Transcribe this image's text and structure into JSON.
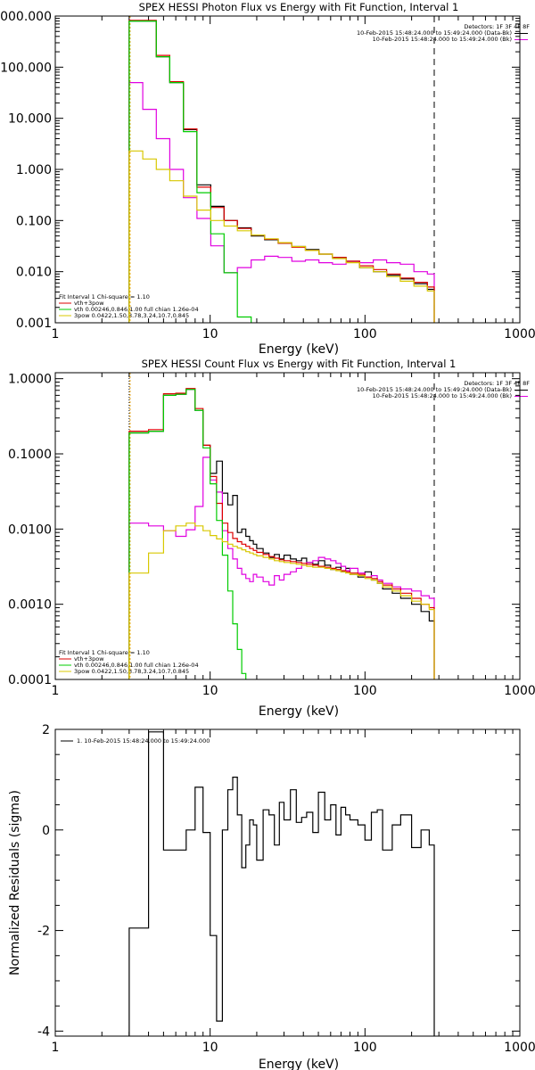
{
  "chart_data": [
    {
      "type": "line",
      "title": "SPEX HESSI Photon Flux vs Energy with Fit Function, Interval 1",
      "xlabel": "Energy (keV)",
      "ylabel": "",
      "xscale": "log",
      "yscale": "log",
      "xlim": [
        1,
        1000
      ],
      "ylim": [
        0.001,
        1000
      ],
      "xticks": [
        "1",
        "10",
        "100",
        "1000"
      ],
      "yticks": [
        "1000.000",
        "100.000",
        "10.000",
        "1.000",
        "0.100",
        "0.010",
        "0.001"
      ],
      "vlines": [
        3,
        280
      ],
      "legend_right": {
        "header": "Detectors: 1F 3F 4F 8F",
        "items": [
          {
            "text": "10-Feb-2015 15:48:24.000 to 15:49:24.000 (Data-Bk)",
            "color": "#000000"
          },
          {
            "text": "10-Feb-2015 15:48:24.000 to 15:49:24.000 (Bk)",
            "color": "#e000e0"
          }
        ]
      },
      "legend_left": {
        "header": "Fit Interval 1   Chi-square = 1.10",
        "items": [
          {
            "text": "vth+3pow",
            "color": "#dd0000"
          },
          {
            "text": "vth 0.00246,0.846,1.00  full chian 1.26e-04",
            "color": "#00cc00"
          },
          {
            "text": "3pow 0.0422,1.50,3.78,3.24,10.7,0.845",
            "color": "#d8c800"
          }
        ]
      },
      "edges": [
        3.0,
        3.67,
        4.49,
        5.49,
        6.72,
        8.22,
        10.1,
        12.3,
        15.0,
        18.4,
        22.5,
        27.5,
        33.7,
        41.2,
        50.4,
        61.7,
        75.5,
        92.3,
        113,
        138,
        169,
        207,
        253,
        280
      ],
      "series": [
        {
          "name": "Data-Bk",
          "color": "#000000",
          "values": [
            800,
            800,
            160,
            50,
            6.0,
            0.5,
            0.19,
            0.1,
            0.072,
            0.05,
            0.042,
            0.036,
            0.031,
            0.027,
            0.022,
            0.019,
            0.016,
            0.012,
            0.01,
            0.0085,
            0.0072,
            0.0058,
            0.0045
          ]
        },
        {
          "name": "Bk",
          "color": "#e000e0",
          "values": [
            50,
            15,
            4.0,
            1.0,
            0.28,
            0.11,
            0.032,
            0.0095,
            0.012,
            0.017,
            0.02,
            0.019,
            0.016,
            0.017,
            0.015,
            0.014,
            0.016,
            0.015,
            0.017,
            0.015,
            0.014,
            0.01,
            0.009
          ]
        },
        {
          "name": "vth+3pow",
          "color": "#dd0000",
          "values": [
            820,
            820,
            170,
            52,
            6.2,
            0.45,
            0.18,
            0.1,
            0.07,
            0.052,
            0.043,
            0.036,
            0.03,
            0.026,
            0.022,
            0.019,
            0.016,
            0.013,
            0.011,
            0.009,
            0.0075,
            0.0062,
            0.005
          ]
        },
        {
          "name": "vth",
          "color": "#00cc00",
          "values": [
            800,
            800,
            160,
            50,
            5.5,
            0.35,
            0.055,
            0.0095,
            0.0013
          ]
        },
        {
          "name": "3pow",
          "color": "#d8c800",
          "values": [
            2.3,
            1.6,
            1.0,
            0.6,
            0.3,
            0.16,
            0.1,
            0.078,
            0.063,
            0.052,
            0.044,
            0.037,
            0.031,
            0.026,
            0.022,
            0.018,
            0.015,
            0.012,
            0.01,
            0.008,
            0.0065,
            0.0052,
            0.0042
          ]
        }
      ]
    },
    {
      "type": "line",
      "title": "SPEX HESSI Count Flux vs Energy with Fit Function, Interval 1",
      "xlabel": "Energy (keV)",
      "ylabel": "",
      "xscale": "log",
      "yscale": "log",
      "xlim": [
        1,
        1000
      ],
      "ylim": [
        0.0001,
        1.2
      ],
      "xticks": [
        "1",
        "10",
        "100",
        "1000"
      ],
      "yticks": [
        "1.0000",
        "0.1000",
        "0.0100",
        "0.0010",
        "0.0001"
      ],
      "vlines": [
        3,
        280
      ],
      "legend_right": {
        "header": "Detectors: 1F 3F 4F 8F",
        "items": [
          {
            "text": "10-Feb-2015 15:48:24.000 to 15:49:24.000 (Data-Bk)",
            "color": "#000000"
          },
          {
            "text": "10-Feb-2015 15:48:24.000 to 15:49:24.000 (Bk)",
            "color": "#e000e0"
          }
        ]
      },
      "legend_left": {
        "header": "Fit Interval 1   Chi-square = 1.10",
        "items": [
          {
            "text": "vth+3pow",
            "color": "#dd0000"
          },
          {
            "text": "vth 0.00246,0.846,1.00  full chian 1.26e-04",
            "color": "#00cc00"
          },
          {
            "text": "3pow 0.0422,1.50,3.78,3.24,10.7,0.845",
            "color": "#d8c800"
          }
        ]
      },
      "edges": [
        3.0,
        4.0,
        5.0,
        6.0,
        7.0,
        8.0,
        9.0,
        10.0,
        11.0,
        12.0,
        13.0,
        14.0,
        15.0,
        16.0,
        17.0,
        18.0,
        19.0,
        20.0,
        22.0,
        24.0,
        26.0,
        28.0,
        30.0,
        33.0,
        36.0,
        39.0,
        42.0,
        46.0,
        50.0,
        55.0,
        60.0,
        65.0,
        70.0,
        75.0,
        80.0,
        90.0,
        100.0,
        110.0,
        120.0,
        130.0,
        150.0,
        170.0,
        200.0,
        230.0,
        260.0,
        280.0
      ],
      "series": [
        {
          "name": "Data-Bk",
          "color": "#000000",
          "values": [
            0.19,
            0.2,
            0.6,
            0.62,
            0.72,
            0.38,
            0.13,
            0.055,
            0.08,
            0.03,
            0.021,
            0.028,
            0.009,
            0.01,
            0.008,
            0.007,
            0.0063,
            0.0055,
            0.0048,
            0.0042,
            0.0046,
            0.004,
            0.0045,
            0.004,
            0.0038,
            0.0041,
            0.0036,
            0.0034,
            0.0038,
            0.0033,
            0.0029,
            0.0031,
            0.0027,
            0.003,
            0.0025,
            0.0023,
            0.0027,
            0.0021,
            0.0019,
            0.0016,
            0.0014,
            0.0012,
            0.001,
            0.0008,
            0.0006
          ]
        },
        {
          "name": "Bk",
          "color": "#e000e0",
          "values": [
            0.012,
            0.011,
            0.0095,
            0.008,
            0.0098,
            0.02,
            0.09,
            0.045,
            0.031,
            0.0095,
            0.0055,
            0.004,
            0.003,
            0.0025,
            0.0022,
            0.002,
            0.0025,
            0.0023,
            0.002,
            0.0018,
            0.0024,
            0.0021,
            0.0025,
            0.0027,
            0.003,
            0.0033,
            0.0036,
            0.0038,
            0.0042,
            0.004,
            0.0038,
            0.0035,
            0.0032,
            0.0028,
            0.003,
            0.0026,
            0.0023,
            0.0024,
            0.0021,
            0.0019,
            0.0017,
            0.0016,
            0.0015,
            0.0013,
            0.0012
          ]
        },
        {
          "name": "vth+3pow",
          "color": "#dd0000",
          "values": [
            0.2,
            0.21,
            0.63,
            0.64,
            0.74,
            0.4,
            0.13,
            0.05,
            0.022,
            0.012,
            0.009,
            0.0075,
            0.0068,
            0.0063,
            0.0059,
            0.0055,
            0.0052,
            0.0049,
            0.0046,
            0.0043,
            0.0041,
            0.0039,
            0.0038,
            0.0037,
            0.0036,
            0.0035,
            0.0034,
            0.0033,
            0.0032,
            0.0031,
            0.003,
            0.0029,
            0.0028,
            0.0027,
            0.0026,
            0.0025,
            0.0023,
            0.0022,
            0.002,
            0.0018,
            0.0016,
            0.0014,
            0.0012,
            0.001,
            0.0009
          ]
        },
        {
          "name": "vth",
          "color": "#00cc00",
          "values": [
            0.19,
            0.2,
            0.6,
            0.62,
            0.72,
            0.38,
            0.12,
            0.04,
            0.013,
            0.0045,
            0.0015,
            0.00055,
            0.00025,
            0.00012
          ]
        },
        {
          "name": "3pow",
          "color": "#d8c800",
          "values": [
            0.0026,
            0.0048,
            0.0095,
            0.011,
            0.012,
            0.011,
            0.0095,
            0.0082,
            0.0074,
            0.0068,
            0.0063,
            0.0059,
            0.0056,
            0.0053,
            0.005,
            0.0048,
            0.0046,
            0.0044,
            0.0042,
            0.004,
            0.0038,
            0.0037,
            0.0036,
            0.0035,
            0.0034,
            0.0033,
            0.0032,
            0.0031,
            0.0031,
            0.003,
            0.0029,
            0.0028,
            0.0027,
            0.0026,
            0.0025,
            0.0024,
            0.0022,
            0.0021,
            0.0019,
            0.0017,
            0.0015,
            0.0013,
            0.0011,
            0.001,
            0.00085
          ]
        }
      ]
    },
    {
      "type": "line",
      "title": "",
      "xlabel": "Energy (keV)",
      "ylabel": "Normalized Residuals (sigma)",
      "xscale": "log",
      "yscale": "linear",
      "xlim": [
        1,
        1000
      ],
      "ylim": [
        -4.1,
        2.0
      ],
      "xticks": [
        "1",
        "10",
        "100",
        "1000"
      ],
      "yticks": [
        "2",
        "0",
        "-2",
        "-4"
      ],
      "legend_left": {
        "header": "",
        "items": [
          {
            "text": "1. 10-Feb-2015 15:48:24.000 to 15:49:24.000",
            "color": "#000000"
          }
        ]
      },
      "edges": [
        3.0,
        4.0,
        5.0,
        6.0,
        7.0,
        8.0,
        9.0,
        10.0,
        11.0,
        12.0,
        13.0,
        14.0,
        15.0,
        16.0,
        17.0,
        18.0,
        19.0,
        20.0,
        22.0,
        24.0,
        26.0,
        28.0,
        30.0,
        33.0,
        36.0,
        39.0,
        42.0,
        46.0,
        50.0,
        55.0,
        60.0,
        65.0,
        70.0,
        75.0,
        80.0,
        90.0,
        100.0,
        110.0,
        120.0,
        130.0,
        150.0,
        170.0,
        200.0,
        230.0,
        260.0,
        280.0
      ],
      "series": [
        {
          "name": "residuals",
          "color": "#000000",
          "values": [
            -1.95,
            1.95,
            -0.4,
            -0.4,
            0.0,
            0.85,
            -0.05,
            -2.1,
            -3.8,
            0.0,
            0.8,
            1.05,
            0.3,
            -0.75,
            -0.3,
            0.2,
            0.1,
            -0.6,
            0.4,
            0.3,
            -0.3,
            0.55,
            0.2,
            0.8,
            0.15,
            0.25,
            0.35,
            -0.05,
            0.75,
            0.2,
            0.5,
            -0.1,
            0.45,
            0.3,
            0.2,
            0.1,
            -0.2,
            0.35,
            0.4,
            -0.4,
            0.1,
            0.3,
            -0.35,
            0.0,
            -0.3
          ]
        }
      ]
    }
  ]
}
